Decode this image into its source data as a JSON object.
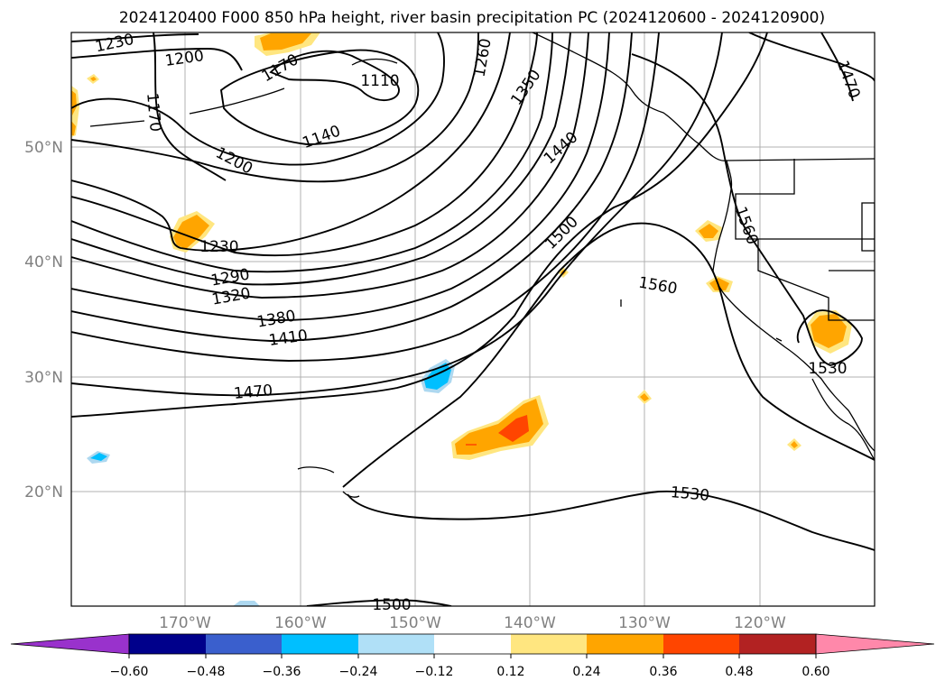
{
  "title": "2024120400 F000 850 hPa height, river basin precipitation PC (2024120600 - 2024120900)",
  "map": {
    "lat_labels": [
      "50°N",
      "40°N",
      "30°N",
      "20°N"
    ],
    "lon_labels": [
      "170°W",
      "160°W",
      "150°W",
      "140°W",
      "130°W",
      "120°W"
    ],
    "gridlines": true,
    "contour_labels": [
      "1230",
      "1200",
      "1170",
      "1110",
      "1260",
      "1350",
      "1470",
      "1170",
      "1140",
      "1200",
      "1440",
      "1560",
      "1230",
      "1500",
      "1290",
      "1320",
      "1560",
      "1380",
      "1410",
      "1530",
      "1470",
      "1530",
      "1500"
    ],
    "contour_color": "#000000",
    "shading_colors": {
      "yellow": "#ffe680",
      "orange": "#ffa500",
      "red_orange": "#ff4500",
      "light_blue": "#add8f0",
      "sky_blue": "#00bfff"
    }
  },
  "colorbar": {
    "tick_labels": [
      "−0.60",
      "−0.48",
      "−0.36",
      "−0.24",
      "−0.12",
      "0.12",
      "0.24",
      "0.36",
      "0.48",
      "0.60"
    ],
    "colors": [
      "#9932cc",
      "#00008b",
      "#3a5fcd",
      "#00bfff",
      "#b0e0f7",
      "#ffffff",
      "#ffe680",
      "#ffa500",
      "#ff4500",
      "#b22222",
      "#ff88aa"
    ]
  }
}
